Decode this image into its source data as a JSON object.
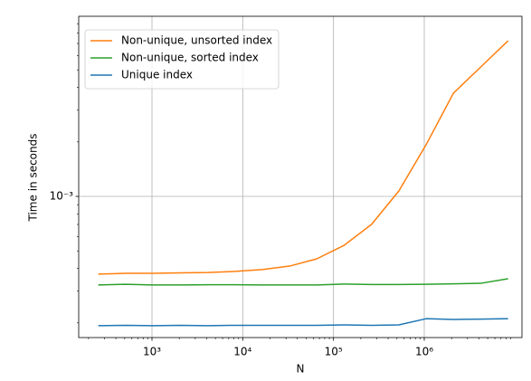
{
  "chart_data": {
    "type": "line",
    "xlabel": "N",
    "ylabel": "Time in seconds",
    "x": [
      256,
      512,
      1024,
      2048,
      4096,
      8192,
      16384,
      32768,
      65536,
      131072,
      262144,
      524288,
      1048576,
      2097152,
      4194304,
      8388608
    ],
    "series": [
      {
        "name": "Non-unique, unsorted index",
        "color": "#ff7f0e",
        "values": [
          0.000372,
          0.000376,
          0.000376,
          0.000378,
          0.00038,
          0.000385,
          0.000394,
          0.000412,
          0.000452,
          0.000537,
          0.0007,
          0.00107,
          0.00193,
          0.00372,
          0.00519,
          0.00724
        ]
      },
      {
        "name": "Non-unique, sorted index",
        "color": "#2ca02c",
        "values": [
          0.000324,
          0.000327,
          0.000324,
          0.000324,
          0.000325,
          0.000325,
          0.000324,
          0.000324,
          0.000324,
          0.000328,
          0.000326,
          0.000326,
          0.000327,
          0.000329,
          0.000331,
          0.000351
        ]
      },
      {
        "name": "Unique index",
        "color": "#1f77b4",
        "values": [
          0.000193,
          0.000194,
          0.000193,
          0.000194,
          0.000193,
          0.000194,
          0.000194,
          0.000194,
          0.000194,
          0.000195,
          0.000194,
          0.000195,
          0.000211,
          0.000209,
          0.00021,
          0.000211
        ]
      }
    ],
    "xscale": "log",
    "yscale": "log",
    "xlim": [
      155.8,
      11930000
    ],
    "ylim": [
      0.000166,
      0.00989
    ],
    "xticks": [
      {
        "value": 1000,
        "label": "10³"
      },
      {
        "value": 10000,
        "label": "10⁴"
      },
      {
        "value": 100000,
        "label": "10⁵"
      },
      {
        "value": 1000000,
        "label": "10⁶"
      }
    ],
    "xminorticks": [
      200,
      300,
      400,
      500,
      600,
      700,
      800,
      900,
      2000,
      3000,
      4000,
      5000,
      6000,
      7000,
      8000,
      9000,
      20000,
      30000,
      40000,
      50000,
      60000,
      70000,
      80000,
      90000,
      200000,
      300000,
      400000,
      500000,
      600000,
      700000,
      800000,
      900000,
      2000000,
      3000000,
      4000000,
      5000000,
      6000000,
      7000000,
      8000000,
      9000000
    ],
    "yticks": [
      {
        "value": 0.001,
        "label": "10⁻³"
      }
    ],
    "yminorticks": [
      0.0002,
      0.0003,
      0.0004,
      0.0005,
      0.0006,
      0.0007,
      0.0008,
      0.0009,
      0.002,
      0.003,
      0.004,
      0.005,
      0.006,
      0.007,
      0.008,
      0.009
    ],
    "grid": true,
    "legend": "upper left"
  }
}
